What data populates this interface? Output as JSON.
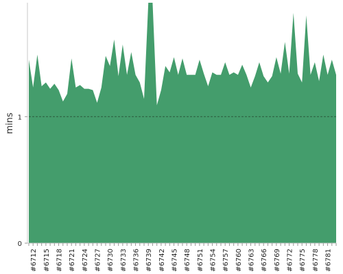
{
  "chart_data": {
    "type": "area",
    "title": "",
    "xlabel": "",
    "ylabel": "mins",
    "color": "#449d6c",
    "reference_line_color": "#2c5a3d",
    "yticks": [
      0,
      1
    ],
    "ylim": [
      0,
      1.9
    ],
    "reference_line": 1,
    "x_tick_labels": [
      "#6712",
      "#6715",
      "#6718",
      "#6721",
      "#6724",
      "#6727",
      "#6730",
      "#6733",
      "#6736",
      "#6739",
      "#6742",
      "#6745",
      "#6748",
      "#6751",
      "#6754",
      "#6757",
      "#6760",
      "#6763",
      "#6766",
      "#6769",
      "#6772",
      "#6775",
      "#6778",
      "#6781"
    ],
    "x_first": 6711,
    "x_last": 6783,
    "series": [
      {
        "values": [
          1.45,
          1.23,
          1.49,
          1.24,
          1.27,
          1.22,
          1.26,
          1.21,
          1.12,
          1.18,
          1.46,
          1.23,
          1.25,
          1.22,
          1.22,
          1.21,
          1.11,
          1.23,
          1.48,
          1.4,
          1.61,
          1.32,
          1.57,
          1.33,
          1.51,
          1.33,
          1.27,
          1.14,
          1.9,
          1.9,
          1.09,
          1.21,
          1.4,
          1.35,
          1.47,
          1.33,
          1.46,
          1.33,
          1.33,
          1.33,
          1.45,
          1.34,
          1.24,
          1.35,
          1.33,
          1.33,
          1.43,
          1.33,
          1.35,
          1.33,
          1.41,
          1.33,
          1.23,
          1.32,
          1.43,
          1.32,
          1.27,
          1.32,
          1.47,
          1.34,
          1.59,
          1.34,
          1.82,
          1.34,
          1.27,
          1.8,
          1.33,
          1.43,
          1.28,
          1.49,
          1.33,
          1.45,
          1.33
        ]
      }
    ]
  }
}
